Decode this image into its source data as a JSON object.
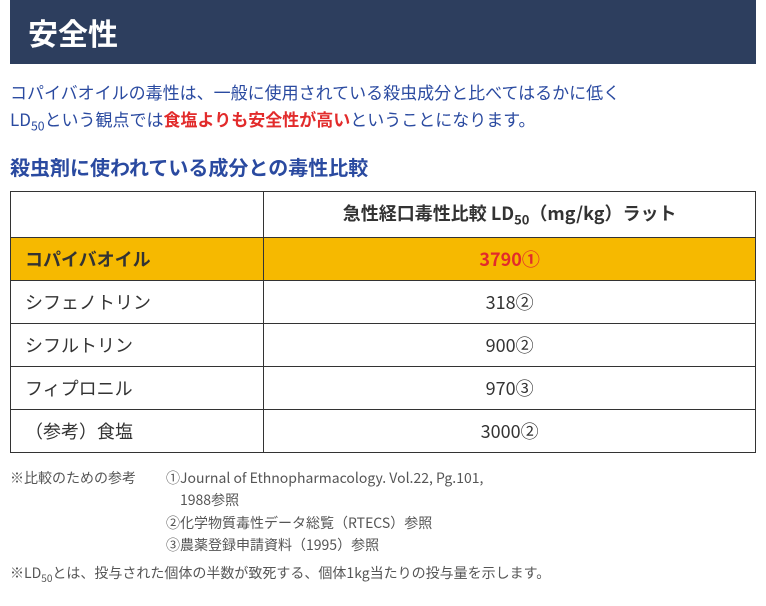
{
  "title_bar": {
    "text": "安全性",
    "bg_color": "#2d3e5e",
    "text_color": "#ffffff",
    "font_size": 30
  },
  "intro": {
    "color": "#2a4aa0",
    "font_size": 17,
    "line1_pre": "コパイバオイルの毒性は、一般に使用されている殺虫成分と比べてはるかに低く",
    "line2_pre": "LD",
    "line2_sub": "50",
    "line2_mid": "という観点では",
    "highlight": "食塩よりも安全性が高い",
    "highlight_color": "#e22b2b",
    "line2_post": "ということになります。"
  },
  "subtitle": {
    "text": "殺虫剤に使われている成分との毒性比較",
    "color": "#2a4aa0",
    "font_size": 20
  },
  "table": {
    "header_pre": "急性経口毒性比較 LD",
    "header_sub": "50",
    "header_post": "（mg/kg）ラット",
    "header_font_size": 18,
    "col1_width": "34%",
    "col2_width": "66%",
    "cell_font_size": 18,
    "highlight_bg": "#f6b900",
    "highlight_value_color": "#e22b2b",
    "sub_font_size": "0.72em",
    "rows": [
      {
        "name": "コパイバオイル",
        "value": "3790①",
        "highlight": true
      },
      {
        "name": "シフェノトリン",
        "value": "318②",
        "highlight": false
      },
      {
        "name": "シフルトリン",
        "value": "900②",
        "highlight": false
      },
      {
        "name": "フィプロニル",
        "value": "970③",
        "highlight": false
      },
      {
        "name": "（参考）食塩",
        "value": "3000②",
        "highlight": false
      }
    ]
  },
  "footnotes": {
    "color": "#555",
    "font_size": 14,
    "lead": "※比較のための参考",
    "refs": [
      "①Journal of Ethnopharmacology. Vol.22, Pg.101,",
      "　1988参照",
      "②化学物質毒性データ総覧（RTECS）参照",
      "③農薬登録申請資料（1995）参照"
    ],
    "ld50_pre": "※LD",
    "ld50_sub": "50",
    "ld50_post": "とは、投与された個体の半数が致死する、個体1kg当たりの投与量を示します。"
  }
}
